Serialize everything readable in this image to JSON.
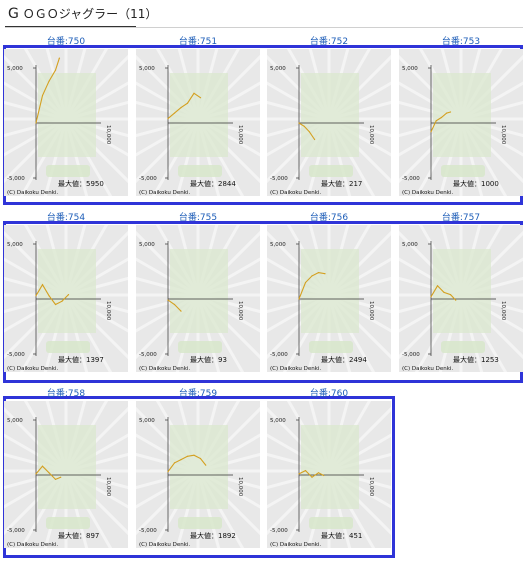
{
  "page": {
    "title_first": "G",
    "title_rest": "ＯＧＯジャグラー（11）"
  },
  "chart_common": {
    "y_top": "5,000",
    "y_bottom": "-5,000",
    "x_end": "10,000",
    "max_label": "最大値：",
    "copyright": "(C) Daikoku Denki.",
    "line_color": "#d4a020",
    "frame_color": "#2f34d8",
    "label_color": "#1d5db8"
  },
  "machines": [
    {
      "label": "台番:750",
      "max": "5950"
    },
    {
      "label": "台番:751",
      "max": "2844"
    },
    {
      "label": "台番:752",
      "max": "217"
    },
    {
      "label": "台番:753",
      "max": "1000"
    },
    {
      "label": "台番:754",
      "max": "1397"
    },
    {
      "label": "台番:755",
      "max": "93"
    },
    {
      "label": "台番:756",
      "max": "2494"
    },
    {
      "label": "台番:757",
      "max": "1253"
    },
    {
      "label": "台番:758",
      "max": "897"
    },
    {
      "label": "台番:759",
      "max": "1892"
    },
    {
      "label": "台番:760",
      "max": "451"
    }
  ],
  "chart_data": [
    {
      "type": "line",
      "series": [
        {
          "x": [
            0,
            1000,
            2000,
            3000,
            3600
          ],
          "y": [
            0,
            2500,
            3800,
            4800,
            5900
          ]
        }
      ],
      "ylim": [
        -5000,
        5000
      ],
      "xlim": [
        0,
        10000
      ]
    },
    {
      "type": "line",
      "series": [
        {
          "x": [
            0,
            1000,
            2000,
            3000,
            4000,
            5000
          ],
          "y": [
            400,
            900,
            1400,
            1800,
            2700,
            2300
          ]
        }
      ],
      "ylim": [
        -5000,
        5000
      ],
      "xlim": [
        0,
        10000
      ]
    },
    {
      "type": "line",
      "series": [
        {
          "x": [
            0,
            800,
            1600,
            2400
          ],
          "y": [
            0,
            -300,
            -800,
            -1500
          ]
        }
      ],
      "ylim": [
        -5000,
        5000
      ],
      "xlim": [
        0,
        10000
      ]
    },
    {
      "type": "line",
      "series": [
        {
          "x": [
            0,
            800,
            1600,
            2400,
            3000
          ],
          "y": [
            -800,
            200,
            500,
            900,
            1000
          ]
        }
      ],
      "ylim": [
        -5000,
        5000
      ],
      "xlim": [
        0,
        10000
      ]
    },
    {
      "type": "line",
      "series": [
        {
          "x": [
            0,
            1000,
            2000,
            3000,
            4000,
            5000
          ],
          "y": [
            300,
            1300,
            300,
            -500,
            -200,
            400
          ]
        }
      ],
      "ylim": [
        -5000,
        5000
      ],
      "xlim": [
        0,
        10000
      ]
    },
    {
      "type": "line",
      "series": [
        {
          "x": [
            0,
            1000,
            2000
          ],
          "y": [
            -100,
            -500,
            -1100
          ]
        }
      ],
      "ylim": [
        -5000,
        5000
      ],
      "xlim": [
        0,
        10000
      ]
    },
    {
      "type": "line",
      "series": [
        {
          "x": [
            0,
            1000,
            2000,
            3000,
            4000
          ],
          "y": [
            0,
            1500,
            2100,
            2400,
            2300
          ]
        }
      ],
      "ylim": [
        -5000,
        5000
      ],
      "xlim": [
        0,
        10000
      ]
    },
    {
      "type": "line",
      "series": [
        {
          "x": [
            0,
            1000,
            2000,
            3000,
            3800
          ],
          "y": [
            200,
            1200,
            600,
            400,
            -100
          ]
        }
      ],
      "ylim": [
        -5000,
        5000
      ],
      "xlim": [
        0,
        10000
      ]
    },
    {
      "type": "line",
      "series": [
        {
          "x": [
            0,
            1000,
            2000,
            3000,
            3800
          ],
          "y": [
            100,
            800,
            200,
            -400,
            -200
          ]
        }
      ],
      "ylim": [
        -5000,
        5000
      ],
      "xlim": [
        0,
        10000
      ]
    },
    {
      "type": "line",
      "series": [
        {
          "x": [
            0,
            1000,
            2000,
            3000,
            4000,
            5000,
            5800
          ],
          "y": [
            300,
            1100,
            1400,
            1700,
            1800,
            1500,
            900
          ]
        }
      ],
      "ylim": [
        -5000,
        5000
      ],
      "xlim": [
        0,
        10000
      ]
    },
    {
      "type": "line",
      "series": [
        {
          "x": [
            0,
            1000,
            2000,
            3000,
            3800
          ],
          "y": [
            100,
            400,
            -200,
            200,
            -50
          ]
        }
      ],
      "ylim": [
        -5000,
        5000
      ],
      "xlim": [
        0,
        10000
      ]
    }
  ]
}
